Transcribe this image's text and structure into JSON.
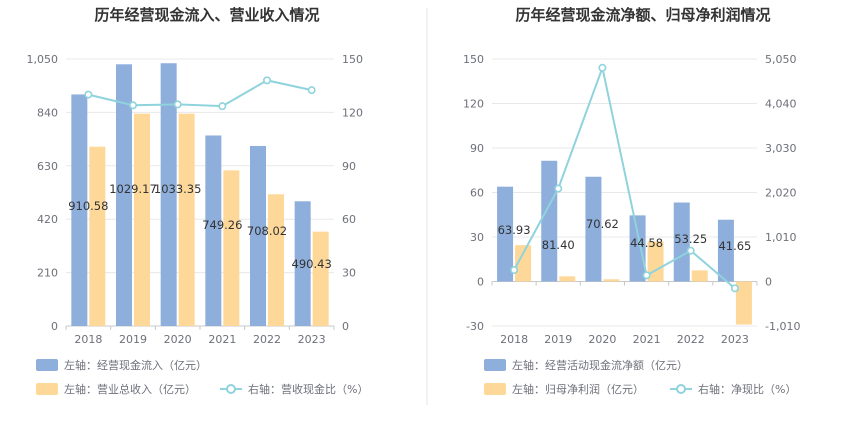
{
  "colors": {
    "bar_blue": "#8eaedb",
    "bar_orange": "#fdd899",
    "line_teal": "#8fd3dd",
    "grid": "#e8e8e8",
    "axis": "#6e7079",
    "divider": "#e6e6e6"
  },
  "chart_data": [
    {
      "type": "bar",
      "title": "历年经营现金流入、营业收入情况",
      "categories": [
        "2018",
        "2019",
        "2020",
        "2021",
        "2022",
        "2023"
      ],
      "y_left": {
        "ticks": [
          "0",
          "210",
          "420",
          "630",
          "840",
          "1,050"
        ],
        "min": 0,
        "max": 1050
      },
      "y_right": {
        "ticks": [
          "0",
          "30",
          "60",
          "90",
          "120",
          "150"
        ],
        "min": 0,
        "max": 150
      },
      "series": [
        {
          "name": "左轴：经营现金流入（亿元）",
          "type": "bar",
          "axis": "left",
          "color": "#8eaedb",
          "values": [
            910.58,
            1029.17,
            1033.35,
            749.26,
            708.02,
            490.43
          ],
          "labels": [
            "910.58",
            "1029.17",
            "1033.35",
            "749.26",
            "708.02",
            "490.43"
          ]
        },
        {
          "name": "左轴：营业总收入（亿元）",
          "type": "bar",
          "axis": "left",
          "color": "#fdd899",
          "values": [
            705,
            835,
            835,
            612,
            518,
            371
          ]
        },
        {
          "name": "右轴：营收现金比（%）",
          "type": "line",
          "axis": "right",
          "color": "#8fd3dd",
          "values": [
            130,
            124,
            124.5,
            123.5,
            138,
            132.5
          ]
        }
      ]
    },
    {
      "type": "bar",
      "title": "历年经营现金流净额、归母净利润情况",
      "categories": [
        "2018",
        "2019",
        "2020",
        "2021",
        "2022",
        "2023"
      ],
      "y_left": {
        "ticks": [
          "-30",
          "0",
          "30",
          "60",
          "90",
          "120",
          "150"
        ],
        "min": -30,
        "max": 150
      },
      "y_right": {
        "ticks": [
          "-1,010",
          "0",
          "1,010",
          "2,020",
          "3,030",
          "4,040",
          "5,050"
        ],
        "min": -1010,
        "max": 5050
      },
      "series": [
        {
          "name": "左轴：经营活动现金流净额（亿元）",
          "type": "bar",
          "axis": "left",
          "color": "#8eaedb",
          "values": [
            63.93,
            81.4,
            70.62,
            44.58,
            53.25,
            41.65
          ],
          "labels": [
            "63.93",
            "81.40",
            "70.62",
            "44.58",
            "53.25",
            "41.65"
          ]
        },
        {
          "name": "左轴：归母净利润（亿元）",
          "type": "bar",
          "axis": "left",
          "color": "#fdd899",
          "values": [
            24.5,
            3.5,
            1.5,
            27,
            7.5,
            -29
          ]
        },
        {
          "name": "右轴：净现比（%）",
          "type": "line",
          "axis": "right",
          "color": "#8fd3dd",
          "values": [
            260,
            2110,
            4850,
            140,
            700,
            -155
          ]
        }
      ]
    }
  ]
}
